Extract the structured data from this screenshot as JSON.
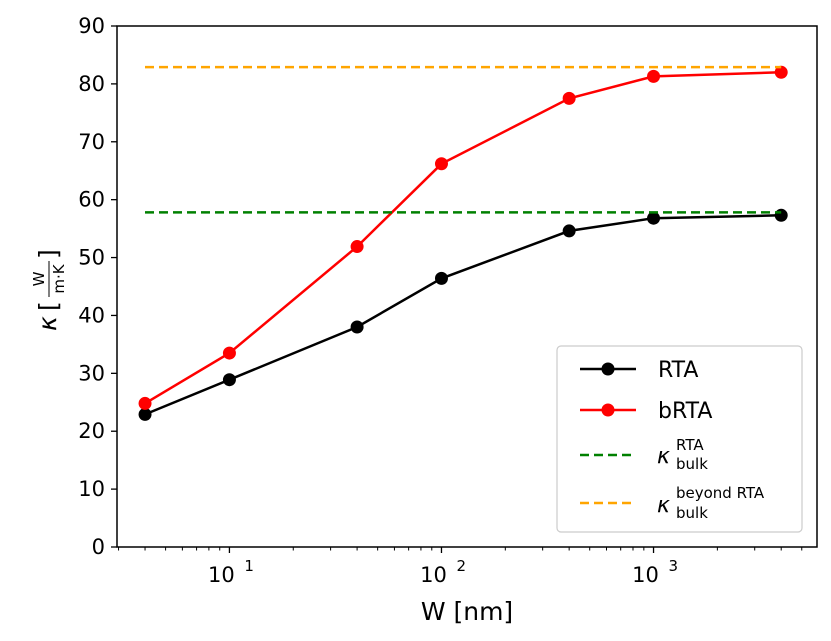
{
  "chart_data": {
    "type": "line",
    "xscale": "log",
    "xlabel": "W [nm]",
    "ylabel": {
      "symbol": "κ",
      "numerator": "W",
      "denominator": "m·K"
    },
    "xlim": [
      2.95,
      5900
    ],
    "ylim": [
      0,
      90
    ],
    "yticks": [
      0,
      10,
      20,
      30,
      40,
      50,
      60,
      70,
      80,
      90
    ],
    "xticks": [
      {
        "value": 10,
        "base": "10",
        "exp": "1"
      },
      {
        "value": 100,
        "base": "10",
        "exp": "2"
      },
      {
        "value": 1000,
        "base": "10",
        "exp": "3"
      }
    ],
    "series": [
      {
        "name": "RTA",
        "style": "line-marker",
        "color": "#000000",
        "x": [
          4,
          10,
          40,
          100,
          400,
          1000,
          4000
        ],
        "y": [
          22.9,
          28.9,
          38.0,
          46.4,
          54.6,
          56.8,
          57.3
        ]
      },
      {
        "name": "bRTA",
        "style": "line-marker",
        "color": "#ff0000",
        "x": [
          4,
          10,
          40,
          100,
          400,
          1000,
          4000
        ],
        "y": [
          24.8,
          33.5,
          51.9,
          66.2,
          77.5,
          81.3,
          82.0
        ]
      },
      {
        "name": "κ_bulk^RTA",
        "style": "dashed",
        "color": "#008000",
        "x": [
          4,
          4000
        ],
        "y": [
          57.8,
          57.8
        ]
      },
      {
        "name": "κ_bulk^beyond RTA",
        "style": "dashed",
        "color": "#ffa500",
        "x": [
          4,
          4000
        ],
        "y": [
          82.9,
          82.9
        ]
      }
    ],
    "legend": {
      "placement": "lower-right",
      "entries": [
        {
          "label": "RTA"
        },
        {
          "label": "bRTA"
        },
        {
          "symbol": "κ",
          "sup": "RTA",
          "sub": "bulk"
        },
        {
          "symbol": "κ",
          "sup": "beyond RTA",
          "sub": "bulk"
        }
      ]
    }
  }
}
